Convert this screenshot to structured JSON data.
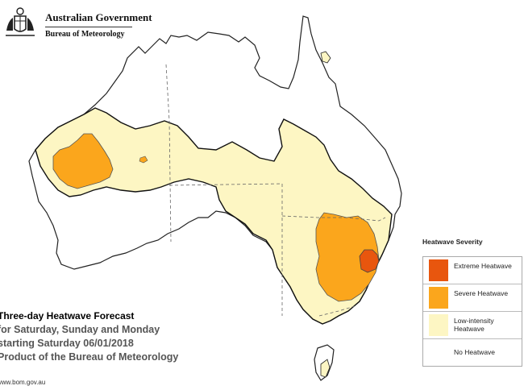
{
  "header": {
    "government_title": "Australian Government",
    "agency_title": "Bureau of Meteorology"
  },
  "caption": {
    "title": "Three-day Heatwave Forecast",
    "line2": "for Saturday, Sunday and Monday",
    "line3": "starting Saturday 06/01/2018",
    "line4": "Product of the Bureau of Meteorology"
  },
  "url": "www.bom.gov.au",
  "legend": {
    "title": "Heatwave Severity",
    "items": [
      {
        "label": "Extreme Heatwave",
        "color": "#e8560e"
      },
      {
        "label": "Severe Heatwave",
        "color": "#fba61c"
      },
      {
        "label": "Low-intensity Heatwave",
        "color": "#fdf6c3"
      },
      {
        "label": "No Heatwave",
        "color": "#ffffff"
      }
    ]
  },
  "colors": {
    "extreme": "#e8560e",
    "severe": "#fba61c",
    "low": "#fdf6c3",
    "none": "#ffffff"
  }
}
